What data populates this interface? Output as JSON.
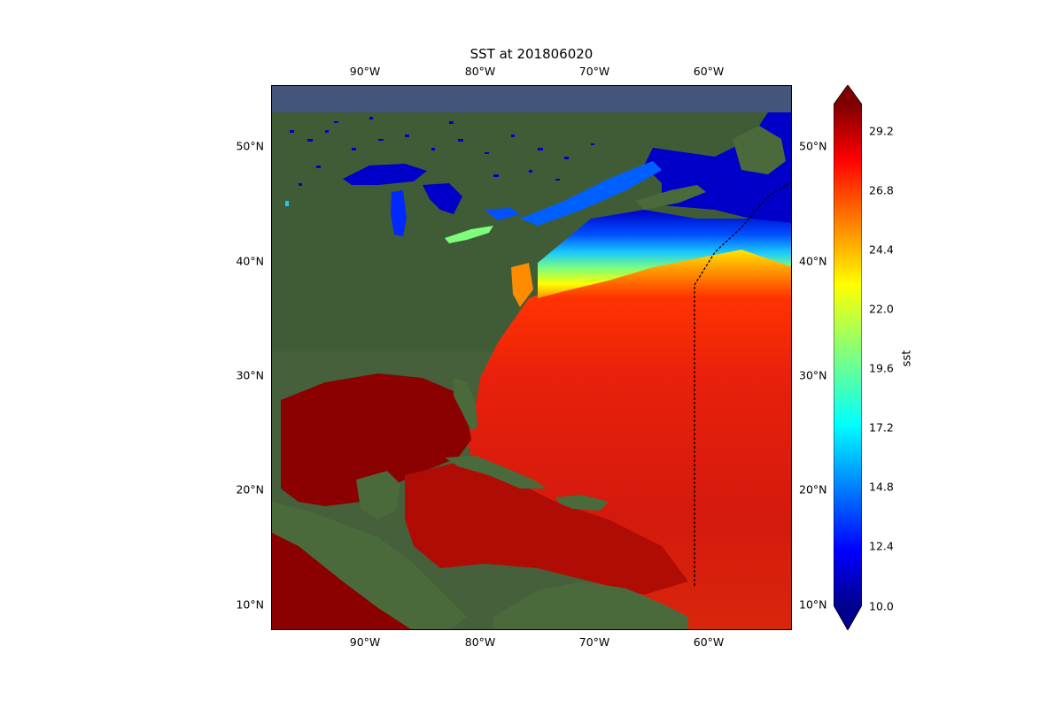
{
  "title": "SST at 201806020",
  "lon_ticks_top": [
    "90°W",
    "80°W",
    "70°W",
    "60°W"
  ],
  "lon_ticks_bottom": [
    "90°W",
    "80°W",
    "70°W",
    "60°W"
  ],
  "lat_ticks_left": [
    "50°N",
    "40°N",
    "30°N",
    "20°N",
    "10°N"
  ],
  "lat_ticks_right": [
    "50°N",
    "40°N",
    "30°N",
    "20°N",
    "10°N"
  ],
  "colorbar": {
    "label": "sst",
    "ticks": [
      "29.2",
      "26.8",
      "24.4",
      "22.0",
      "19.6",
      "17.2",
      "14.8",
      "12.4",
      "10.0"
    ],
    "min": 10.0,
    "max": 30.0,
    "colormap": "jet",
    "extend": "both"
  },
  "colors": {
    "land": "#45603a",
    "warm_sea": "#cf1a10",
    "deep_red": "#8b0000",
    "cold_sea": "#0000c8",
    "track_line": "#000000"
  }
}
